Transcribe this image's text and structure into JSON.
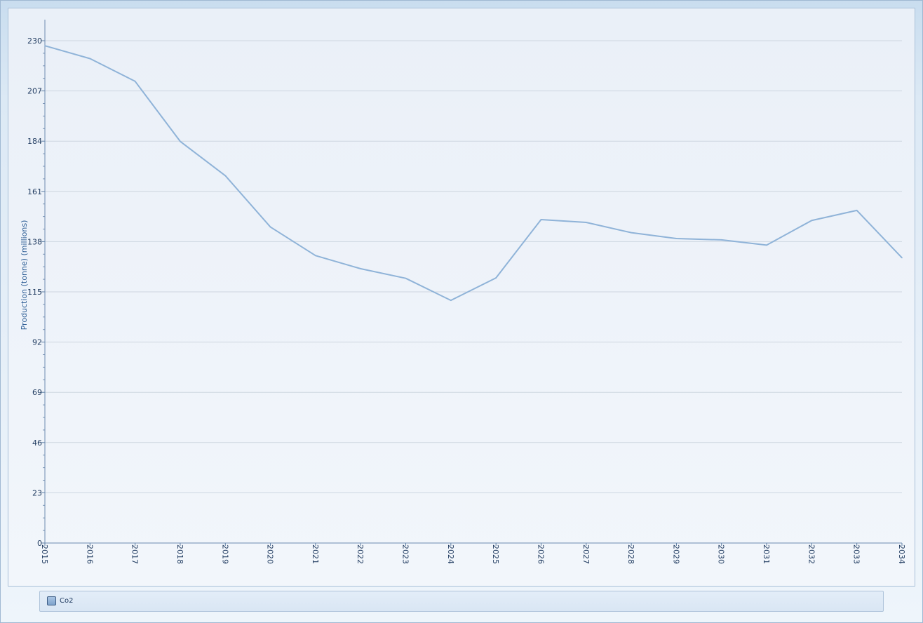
{
  "chart_data": {
    "type": "line",
    "title": "",
    "xlabel": "",
    "ylabel": "Production (tonne) (millions)",
    "categories": [
      "2015",
      "2016",
      "2017",
      "2018",
      "2019",
      "2020",
      "2021",
      "2022",
      "2023",
      "2024",
      "2025",
      "2026",
      "2027",
      "2028",
      "2029",
      "2030",
      "2031",
      "2032",
      "2033",
      "2034"
    ],
    "yticks": [
      0,
      23,
      46,
      69,
      92,
      115,
      138,
      161,
      184,
      207,
      230
    ],
    "ylim": [
      0,
      239
    ],
    "grid": true,
    "legend_position": "bottom",
    "series": [
      {
        "name": "Co2",
        "color": "#8fb3d8",
        "values": [
          227.7,
          221.8,
          211.4,
          183.9,
          168.2,
          144.7,
          131.6,
          125.6,
          121.2,
          111.1,
          121.4,
          148.1,
          146.8,
          142.1,
          139.4,
          138.8,
          136.4,
          147.7,
          152.3,
          130.6
        ]
      }
    ]
  },
  "legend": {
    "items": [
      {
        "label": "Co2",
        "color": "#8fb3d8"
      }
    ]
  }
}
